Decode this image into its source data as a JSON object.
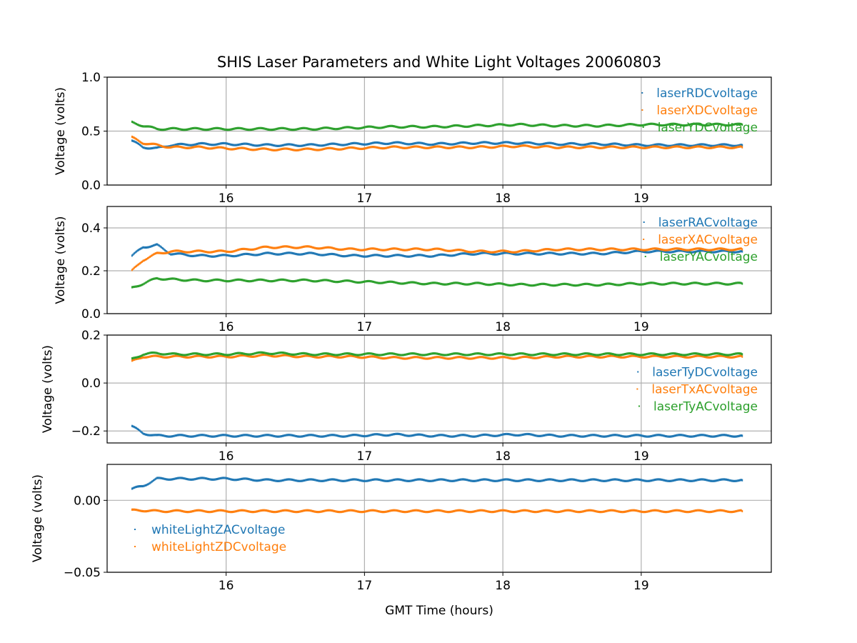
{
  "title": "SHIS Laser Parameters and White Light Voltages 20060803",
  "xlabel": "GMT Time (hours)",
  "colors": {
    "blue": "#1f77b4",
    "orange": "#ff7f0e",
    "green": "#2ca02c",
    "grid": "#b0b0b0"
  },
  "chart_data": [
    {
      "type": "scatter",
      "ylabel": "Voltage (volts)",
      "xlim": [
        15.14,
        19.94
      ],
      "ylim": [
        0.0,
        1.0
      ],
      "xticks": [
        "16",
        "17",
        "18",
        "19"
      ],
      "yticks": [
        "0.0",
        "0.5",
        "1.0"
      ],
      "legend_position": "upper right",
      "series": [
        {
          "name": "laserRDCvoltage",
          "color": "#1f77b4",
          "points": [
            [
              15.32,
              0.41
            ],
            [
              15.4,
              0.35
            ],
            [
              15.5,
              0.34
            ],
            [
              15.6,
              0.37
            ],
            [
              15.8,
              0.38
            ],
            [
              16.0,
              0.38
            ],
            [
              16.3,
              0.37
            ],
            [
              16.6,
              0.37
            ],
            [
              16.9,
              0.38
            ],
            [
              17.2,
              0.39
            ],
            [
              17.5,
              0.38
            ],
            [
              17.8,
              0.39
            ],
            [
              18.1,
              0.39
            ],
            [
              18.4,
              0.38
            ],
            [
              18.7,
              0.38
            ],
            [
              19.0,
              0.37
            ],
            [
              19.3,
              0.37
            ],
            [
              19.6,
              0.37
            ],
            [
              19.73,
              0.37
            ]
          ]
        },
        {
          "name": "laserXDCvoltage",
          "color": "#ff7f0e",
          "points": [
            [
              15.32,
              0.44
            ],
            [
              15.4,
              0.39
            ],
            [
              15.5,
              0.37
            ],
            [
              15.6,
              0.35
            ],
            [
              15.8,
              0.35
            ],
            [
              16.0,
              0.34
            ],
            [
              16.3,
              0.33
            ],
            [
              16.6,
              0.33
            ],
            [
              16.9,
              0.34
            ],
            [
              17.2,
              0.35
            ],
            [
              17.5,
              0.35
            ],
            [
              17.8,
              0.35
            ],
            [
              18.1,
              0.36
            ],
            [
              18.4,
              0.35
            ],
            [
              18.7,
              0.35
            ],
            [
              19.0,
              0.35
            ],
            [
              19.3,
              0.35
            ],
            [
              19.6,
              0.35
            ],
            [
              19.73,
              0.35
            ]
          ]
        },
        {
          "name": "laserYDCvoltage",
          "color": "#2ca02c",
          "points": [
            [
              15.32,
              0.58
            ],
            [
              15.4,
              0.55
            ],
            [
              15.5,
              0.52
            ],
            [
              15.6,
              0.52
            ],
            [
              15.8,
              0.52
            ],
            [
              16.0,
              0.52
            ],
            [
              16.3,
              0.52
            ],
            [
              16.6,
              0.52
            ],
            [
              16.9,
              0.53
            ],
            [
              17.2,
              0.54
            ],
            [
              17.5,
              0.54
            ],
            [
              17.8,
              0.55
            ],
            [
              18.1,
              0.56
            ],
            [
              18.4,
              0.55
            ],
            [
              18.7,
              0.55
            ],
            [
              19.0,
              0.56
            ],
            [
              19.3,
              0.56
            ],
            [
              19.6,
              0.56
            ],
            [
              19.73,
              0.56
            ]
          ]
        }
      ]
    },
    {
      "type": "scatter",
      "ylabel": "Voltage (volts)",
      "xlim": [
        15.14,
        19.94
      ],
      "ylim": [
        0.0,
        0.5
      ],
      "xticks": [
        "16",
        "17",
        "18",
        "19"
      ],
      "yticks": [
        "0.0",
        "0.2",
        "0.4"
      ],
      "legend_position": "upper right",
      "series": [
        {
          "name": "laserRACvoltage",
          "color": "#1f77b4",
          "points": [
            [
              15.32,
              0.27
            ],
            [
              15.4,
              0.31
            ],
            [
              15.5,
              0.32
            ],
            [
              15.6,
              0.28
            ],
            [
              15.8,
              0.27
            ],
            [
              16.0,
              0.27
            ],
            [
              16.3,
              0.28
            ],
            [
              16.6,
              0.28
            ],
            [
              16.9,
              0.27
            ],
            [
              17.2,
              0.27
            ],
            [
              17.5,
              0.27
            ],
            [
              17.8,
              0.28
            ],
            [
              18.1,
              0.28
            ],
            [
              18.4,
              0.28
            ],
            [
              18.7,
              0.28
            ],
            [
              19.0,
              0.29
            ],
            [
              19.3,
              0.29
            ],
            [
              19.6,
              0.29
            ],
            [
              19.73,
              0.29
            ]
          ]
        },
        {
          "name": "laserXACvoltage",
          "color": "#ff7f0e",
          "points": [
            [
              15.32,
              0.2
            ],
            [
              15.4,
              0.25
            ],
            [
              15.5,
              0.28
            ],
            [
              15.6,
              0.29
            ],
            [
              15.8,
              0.29
            ],
            [
              16.0,
              0.29
            ],
            [
              16.3,
              0.31
            ],
            [
              16.6,
              0.31
            ],
            [
              16.9,
              0.3
            ],
            [
              17.2,
              0.3
            ],
            [
              17.5,
              0.3
            ],
            [
              17.8,
              0.29
            ],
            [
              18.1,
              0.29
            ],
            [
              18.4,
              0.3
            ],
            [
              18.7,
              0.3
            ],
            [
              19.0,
              0.3
            ],
            [
              19.3,
              0.3
            ],
            [
              19.6,
              0.3
            ],
            [
              19.73,
              0.3
            ]
          ]
        },
        {
          "name": "laserYACvoltage",
          "color": "#2ca02c",
          "points": [
            [
              15.32,
              0.12
            ],
            [
              15.4,
              0.14
            ],
            [
              15.5,
              0.165
            ],
            [
              15.6,
              0.16
            ],
            [
              15.8,
              0.155
            ],
            [
              16.0,
              0.155
            ],
            [
              16.3,
              0.155
            ],
            [
              16.6,
              0.155
            ],
            [
              16.9,
              0.15
            ],
            [
              17.2,
              0.145
            ],
            [
              17.5,
              0.14
            ],
            [
              17.8,
              0.14
            ],
            [
              18.1,
              0.135
            ],
            [
              18.4,
              0.135
            ],
            [
              18.7,
              0.135
            ],
            [
              19.0,
              0.14
            ],
            [
              19.3,
              0.14
            ],
            [
              19.6,
              0.14
            ],
            [
              19.73,
              0.14
            ]
          ]
        }
      ]
    },
    {
      "type": "scatter",
      "ylabel": "Voltage (volts)",
      "xlim": [
        15.14,
        19.94
      ],
      "ylim": [
        -0.25,
        0.2
      ],
      "xticks": [
        "16",
        "17",
        "18",
        "19"
      ],
      "yticks": [
        "−0.2",
        "0.0",
        "0.2"
      ],
      "legend_position": "center right",
      "series": [
        {
          "name": "laserTyDCvoltage",
          "color": "#1f77b4",
          "points": [
            [
              15.32,
              -0.18
            ],
            [
              15.4,
              -0.21
            ],
            [
              15.5,
              -0.22
            ],
            [
              15.6,
              -0.22
            ],
            [
              15.8,
              -0.22
            ],
            [
              16.0,
              -0.22
            ],
            [
              16.3,
              -0.22
            ],
            [
              16.6,
              -0.22
            ],
            [
              16.9,
              -0.22
            ],
            [
              17.2,
              -0.215
            ],
            [
              17.5,
              -0.22
            ],
            [
              17.8,
              -0.22
            ],
            [
              18.1,
              -0.215
            ],
            [
              18.4,
              -0.22
            ],
            [
              18.7,
              -0.22
            ],
            [
              19.0,
              -0.22
            ],
            [
              19.3,
              -0.22
            ],
            [
              19.6,
              -0.22
            ],
            [
              19.73,
              -0.22
            ]
          ]
        },
        {
          "name": "laserTxACvoltage",
          "color": "#ff7f0e",
          "points": [
            [
              15.32,
              0.09
            ],
            [
              15.4,
              0.11
            ],
            [
              15.5,
              0.11
            ],
            [
              15.6,
              0.11
            ],
            [
              15.8,
              0.11
            ],
            [
              16.0,
              0.11
            ],
            [
              16.3,
              0.115
            ],
            [
              16.6,
              0.11
            ],
            [
              16.9,
              0.11
            ],
            [
              17.2,
              0.105
            ],
            [
              17.5,
              0.105
            ],
            [
              17.8,
              0.105
            ],
            [
              18.1,
              0.105
            ],
            [
              18.4,
              0.11
            ],
            [
              18.7,
              0.11
            ],
            [
              19.0,
              0.11
            ],
            [
              19.3,
              0.11
            ],
            [
              19.6,
              0.11
            ],
            [
              19.73,
              0.11
            ]
          ]
        },
        {
          "name": "laserTyACvoltage",
          "color": "#2ca02c",
          "points": [
            [
              15.32,
              0.1
            ],
            [
              15.4,
              0.12
            ],
            [
              15.5,
              0.125
            ],
            [
              15.6,
              0.12
            ],
            [
              15.8,
              0.12
            ],
            [
              16.0,
              0.12
            ],
            [
              16.3,
              0.125
            ],
            [
              16.6,
              0.12
            ],
            [
              16.9,
              0.12
            ],
            [
              17.2,
              0.12
            ],
            [
              17.5,
              0.12
            ],
            [
              17.8,
              0.12
            ],
            [
              18.1,
              0.12
            ],
            [
              18.4,
              0.12
            ],
            [
              18.7,
              0.12
            ],
            [
              19.0,
              0.12
            ],
            [
              19.3,
              0.12
            ],
            [
              19.6,
              0.12
            ],
            [
              19.73,
              0.12
            ]
          ]
        }
      ]
    },
    {
      "type": "scatter",
      "ylabel": "Voltage (volts)",
      "xlim": [
        15.14,
        19.94
      ],
      "ylim": [
        -0.05,
        0.025
      ],
      "xticks": [
        "16",
        "17",
        "18",
        "19"
      ],
      "yticks": [
        "−0.05",
        "0.00"
      ],
      "legend_position": "center left",
      "series": [
        {
          "name": "whiteLightZACvoltage",
          "color": "#1f77b4",
          "points": [
            [
              15.32,
              0.008
            ],
            [
              15.4,
              0.01
            ],
            [
              15.5,
              0.015
            ],
            [
              15.6,
              0.015
            ],
            [
              15.8,
              0.015
            ],
            [
              16.0,
              0.015
            ],
            [
              16.3,
              0.014
            ],
            [
              16.6,
              0.014
            ],
            [
              16.9,
              0.014
            ],
            [
              17.2,
              0.014
            ],
            [
              17.5,
              0.014
            ],
            [
              17.8,
              0.014
            ],
            [
              18.1,
              0.014
            ],
            [
              18.4,
              0.014
            ],
            [
              18.7,
              0.014
            ],
            [
              19.0,
              0.014
            ],
            [
              19.3,
              0.014
            ],
            [
              19.6,
              0.014
            ],
            [
              19.73,
              0.014
            ]
          ]
        },
        {
          "name": "whiteLightZDCvoltage",
          "color": "#ff7f0e",
          "points": [
            [
              15.32,
              -0.007
            ],
            [
              15.4,
              -0.007
            ],
            [
              15.5,
              -0.0075
            ],
            [
              15.6,
              -0.0075
            ],
            [
              15.8,
              -0.0075
            ],
            [
              16.0,
              -0.0075
            ],
            [
              16.3,
              -0.0075
            ],
            [
              16.6,
              -0.0075
            ],
            [
              16.9,
              -0.0075
            ],
            [
              17.2,
              -0.0075
            ],
            [
              17.5,
              -0.0075
            ],
            [
              17.8,
              -0.0075
            ],
            [
              18.1,
              -0.0075
            ],
            [
              18.4,
              -0.0075
            ],
            [
              18.7,
              -0.0075
            ],
            [
              19.0,
              -0.0075
            ],
            [
              19.3,
              -0.0075
            ],
            [
              19.6,
              -0.0075
            ],
            [
              19.73,
              -0.0075
            ]
          ]
        }
      ]
    }
  ]
}
